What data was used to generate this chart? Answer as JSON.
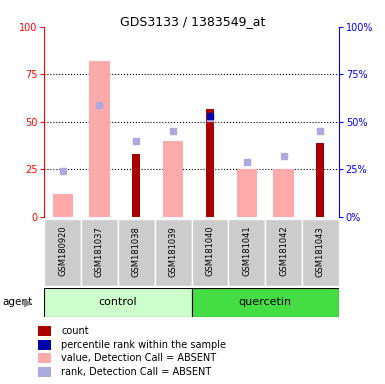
{
  "title": "GDS3133 / 1383549_at",
  "samples": [
    "GSM180920",
    "GSM181037",
    "GSM181038",
    "GSM181039",
    "GSM181040",
    "GSM181041",
    "GSM181042",
    "GSM181043"
  ],
  "count": [
    null,
    null,
    33,
    null,
    57,
    null,
    null,
    39
  ],
  "percentile_rank": [
    null,
    null,
    null,
    null,
    53,
    null,
    null,
    null
  ],
  "value_absent": [
    12,
    82,
    null,
    40,
    null,
    25,
    25,
    null
  ],
  "rank_absent": [
    24,
    59,
    40,
    45,
    52,
    29,
    32,
    45
  ],
  "ylim": [
    0,
    100
  ],
  "yticks": [
    0,
    25,
    50,
    75,
    100
  ],
  "count_color": "#aa0000",
  "percentile_color": "#0000aa",
  "value_absent_color": "#ffaaaa",
  "rank_absent_color": "#aaaadd",
  "control_bg": "#ccffcc",
  "quercetin_bg": "#44dd44",
  "sample_bg": "#cccccc",
  "title_fontsize": 9,
  "tick_fontsize": 7,
  "label_fontsize": 7,
  "group_fontsize": 8
}
